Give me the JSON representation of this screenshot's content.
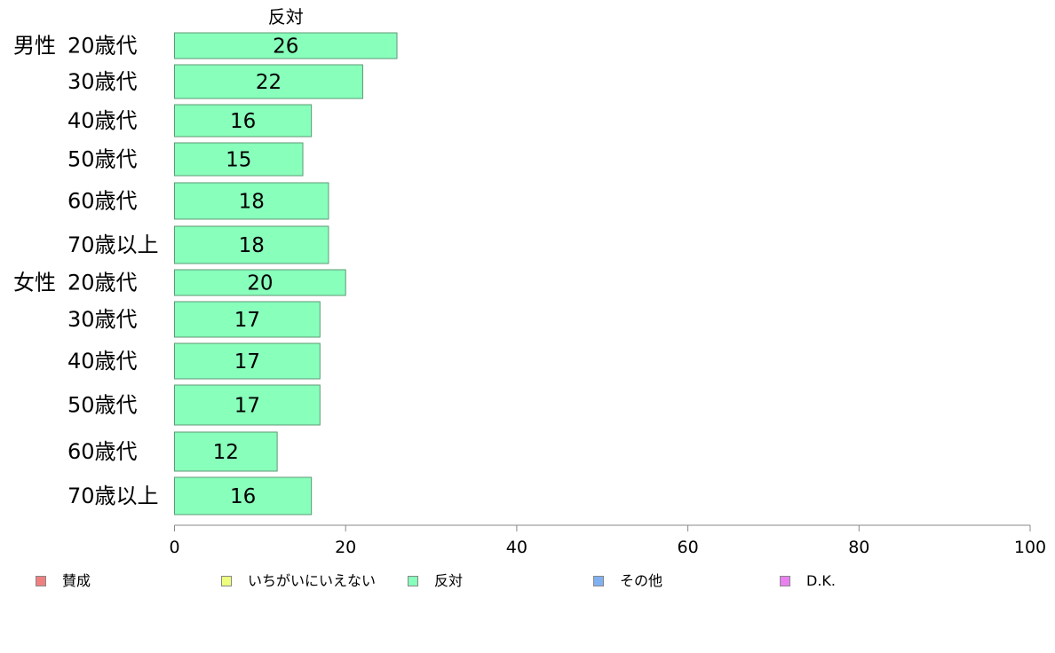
{
  "chart_data": {
    "type": "bar",
    "orientation": "horizontal",
    "stacked": true,
    "categories": [
      {
        "group": "男性",
        "age": "20歳代"
      },
      {
        "group": "",
        "age": "30歳代"
      },
      {
        "group": "",
        "age": "40歳代"
      },
      {
        "group": "",
        "age": "50歳代"
      },
      {
        "group": "",
        "age": "60歳代"
      },
      {
        "group": "",
        "age": "70歳以上"
      },
      {
        "group": "女性",
        "age": "20歳代"
      },
      {
        "group": "",
        "age": "30歳代"
      },
      {
        "group": "",
        "age": "40歳代"
      },
      {
        "group": "",
        "age": "50歳代"
      },
      {
        "group": "",
        "age": "60歳代"
      },
      {
        "group": "",
        "age": "70歳以上"
      }
    ],
    "series": [
      {
        "name": "反対",
        "color": "#88ffbb",
        "values": [
          26,
          22,
          16,
          15,
          18,
          18,
          20,
          17,
          17,
          17,
          12,
          16
        ]
      }
    ],
    "column_header": "反対",
    "xlim": [
      0,
      100
    ],
    "xticks": [
      0,
      20,
      40,
      60,
      80,
      100
    ],
    "grid": false,
    "legend_position": "bottom",
    "legend": [
      {
        "label": "賛成",
        "color": "#f08080"
      },
      {
        "label": "いちがいにいえない",
        "color": "#eeff80"
      },
      {
        "label": "反対",
        "color": "#88ffbb"
      },
      {
        "label": "その他",
        "color": "#80b0f0"
      },
      {
        "label": "D.K.",
        "color": "#e880f0"
      }
    ]
  }
}
